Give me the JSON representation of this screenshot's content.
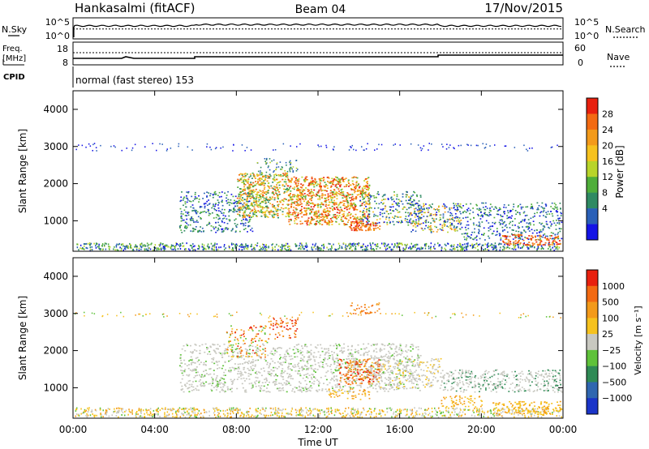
{
  "header": {
    "station": "Hankasalmi (fitACF)",
    "beam": "Beam 04",
    "date": "17/Nov/2015"
  },
  "noise_panel": {
    "left_label": "N.Sky",
    "right_label": "N.Search",
    "left_ticks": [
      "10^5",
      "10^0"
    ],
    "right_ticks": [
      "10^5",
      "10^0"
    ],
    "sky_level": 0.62,
    "search_level": 0.55
  },
  "freq_panel": {
    "left_label_1": "Freq.",
    "left_label_2": "[MHz]",
    "right_label": "Nave",
    "left_ticks": [
      "18",
      "8"
    ],
    "right_ticks": [
      "60",
      "0"
    ]
  },
  "cpid": {
    "label": "CPID",
    "text": "normal (fast stereo) 153"
  },
  "chart_data": [
    {
      "type": "heatmap",
      "name": "power",
      "ylabel": "Slant Range [km]",
      "yticks": [
        "4000",
        "3000",
        "2000",
        "1000"
      ],
      "ylim": [
        180,
        4500
      ],
      "colorbar_label": "Power [dB]",
      "colorbar_ticks": [
        "28",
        "24",
        "20",
        "16",
        "12",
        "8",
        "4"
      ],
      "colors": [
        "#1414e6",
        "#2a60b8",
        "#2f8a63",
        "#4fae3a",
        "#b8d42a",
        "#f6c21e",
        "#f39a1a",
        "#f36a12",
        "#e8200e"
      ]
    },
    {
      "type": "heatmap",
      "name": "velocity",
      "ylabel": "Slant Range [km]",
      "yticks": [
        "4000",
        "3000",
        "2000",
        "1000"
      ],
      "ylim": [
        180,
        4500
      ],
      "colorbar_label": "Velocity [m s⁻¹]",
      "colorbar_ticks": [
        "1000",
        "500",
        "100",
        "25",
        "−25",
        "−100",
        "−500",
        "−1000"
      ],
      "colors": [
        "#1a34c8",
        "#2f66b0",
        "#2f8a55",
        "#5fc23a",
        "#c8c8c0",
        "#f6c21e",
        "#f39a1a",
        "#f36a12",
        "#e8200e"
      ]
    }
  ],
  "xaxis": {
    "ticks": [
      "00:00",
      "04:00",
      "08:00",
      "12:00",
      "16:00",
      "20:00",
      "00:00"
    ],
    "label": "Time UT"
  }
}
